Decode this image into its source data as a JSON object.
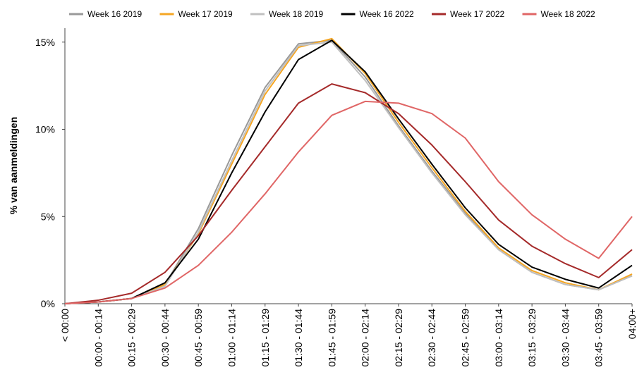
{
  "chart_data": {
    "type": "line",
    "y_label": "% van aanmeldingen",
    "categories": [
      "< 00:00",
      "00:00 - 00:14",
      "00:15 - 00:29",
      "00:30 - 00:44",
      "00:45 - 00:59",
      "01:00 - 01:14",
      "01:15 - 01:29",
      "01:30 - 01:44",
      "01:45 - 01:59",
      "02:00 - 02:14",
      "02:15 - 02:29",
      "02:30 - 02:44",
      "02:45 - 02:59",
      "03:00 - 03:14",
      "03:15 - 03:29",
      "03:30 - 03:44",
      "03:45 - 03:59",
      "04:00+"
    ],
    "series": [
      {
        "name": "Week 16 2019",
        "color": "#999999",
        "values": [
          0,
          0.1,
          0.3,
          1.1,
          4.3,
          8.5,
          12.4,
          14.9,
          15.1,
          13.0,
          10.2,
          7.6,
          5.2,
          3.1,
          1.8,
          1.1,
          0.8,
          1.6
        ]
      },
      {
        "name": "Week 17 2019",
        "color": "#f5a623",
        "values": [
          0,
          0.1,
          0.3,
          1.1,
          4.0,
          8.0,
          12.0,
          14.7,
          15.2,
          13.2,
          10.4,
          7.8,
          5.3,
          3.2,
          1.9,
          1.2,
          0.8,
          1.7
        ]
      },
      {
        "name": "Week 18 2019",
        "color": "#c0c0c0",
        "values": [
          0,
          0.1,
          0.3,
          1.0,
          4.1,
          8.2,
          12.2,
          14.8,
          15.0,
          12.8,
          10.1,
          7.5,
          5.1,
          3.1,
          1.8,
          1.1,
          0.8,
          1.6
        ]
      },
      {
        "name": "Week 16 2022",
        "color": "#000000",
        "values": [
          0,
          0.1,
          0.3,
          1.2,
          3.7,
          7.5,
          11.0,
          14.0,
          15.1,
          13.3,
          10.6,
          8.0,
          5.5,
          3.4,
          2.1,
          1.4,
          0.9,
          2.2
        ]
      },
      {
        "name": "Week 17 2022",
        "color": "#a52a2a",
        "values": [
          0,
          0.2,
          0.6,
          1.8,
          3.9,
          6.5,
          9.0,
          11.5,
          12.6,
          12.1,
          10.9,
          9.1,
          7.0,
          4.8,
          3.3,
          2.3,
          1.5,
          3.1
        ]
      },
      {
        "name": "Week 18 2022",
        "color": "#e06666",
        "values": [
          0,
          0.1,
          0.3,
          0.9,
          2.2,
          4.1,
          6.3,
          8.7,
          10.8,
          11.6,
          11.5,
          10.9,
          9.5,
          7.0,
          5.1,
          3.7,
          2.6,
          5.0
        ]
      }
    ],
    "ylim": [
      0,
      16
    ],
    "yticks": [
      {
        "value": 0,
        "label": "0%"
      },
      {
        "value": 5,
        "label": "5%"
      },
      {
        "value": 10,
        "label": "10%"
      },
      {
        "value": 15,
        "label": "15%"
      }
    ],
    "legend": "top"
  }
}
